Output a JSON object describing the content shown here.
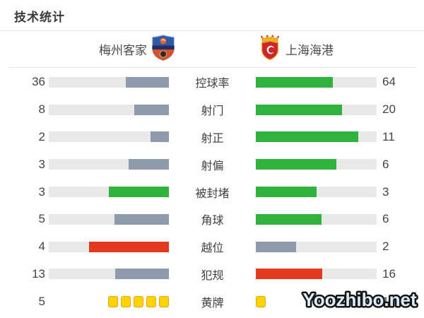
{
  "title": "技术统计",
  "teams": {
    "home": {
      "name": "梅州客家"
    },
    "away": {
      "name": "上海海港"
    }
  },
  "watermark": "Yoozhibo.net",
  "colors": {
    "slate": "#8d9bad",
    "green": "#2fb33d",
    "red": "#e23a1e",
    "track": "#e9e9e9",
    "card_fill": "#ffd401",
    "card_border": "#e8a50e"
  },
  "chart_data": {
    "type": "bar",
    "title": "技术统计",
    "orientation": "paired-horizontal",
    "teams": [
      "梅州客家",
      "上海海港"
    ],
    "note": "bar fill fraction = value / (home + away), home bars anchored right, away bars anchored left",
    "rows": [
      {
        "label": "控球率",
        "home": 36,
        "away": 64,
        "home_color": "slate",
        "away_color": "green",
        "style": "bar"
      },
      {
        "label": "射门",
        "home": 8,
        "away": 20,
        "home_color": "slate",
        "away_color": "green",
        "style": "bar"
      },
      {
        "label": "射正",
        "home": 2,
        "away": 11,
        "home_color": "slate",
        "away_color": "green",
        "style": "bar"
      },
      {
        "label": "射偏",
        "home": 3,
        "away": 6,
        "home_color": "slate",
        "away_color": "green",
        "style": "bar"
      },
      {
        "label": "被封堵",
        "home": 3,
        "away": 3,
        "home_color": "green",
        "away_color": "green",
        "style": "bar"
      },
      {
        "label": "角球",
        "home": 5,
        "away": 6,
        "home_color": "slate",
        "away_color": "green",
        "style": "bar"
      },
      {
        "label": "越位",
        "home": 4,
        "away": 2,
        "home_color": "red",
        "away_color": "slate",
        "style": "bar"
      },
      {
        "label": "犯规",
        "home": 13,
        "away": 16,
        "home_color": "slate",
        "away_color": "red",
        "style": "bar"
      },
      {
        "label": "黄牌",
        "home": 5,
        "away": 1,
        "home_color": "card",
        "away_color": "card",
        "style": "cards"
      }
    ]
  }
}
